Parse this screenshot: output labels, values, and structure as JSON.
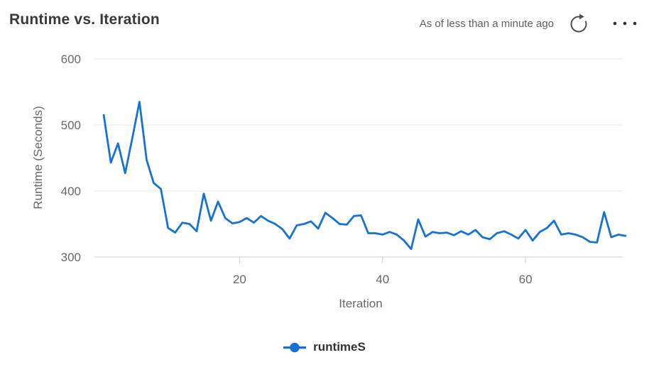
{
  "header": {
    "title": "Runtime vs. Iteration",
    "as_of": "As of less than a minute ago"
  },
  "icons": {
    "refresh": "refresh-icon",
    "more": "ellipsis-icon",
    "legend_marker": "line-dot-marker"
  },
  "chart_data": {
    "type": "line",
    "title": "Runtime vs. Iteration",
    "xlabel": "Iteration",
    "ylabel": "Runtime (Seconds)",
    "x_tick_values": [
      20,
      40,
      60
    ],
    "y_tick_values": [
      300,
      400,
      500,
      600
    ],
    "xlim": [
      0,
      74
    ],
    "ylim": [
      300,
      600
    ],
    "grid": "horizontal-only",
    "legend_position": "bottom-center",
    "series": [
      {
        "name": "runtimeS",
        "color": "#1673d4",
        "x_start": 1,
        "x_step": 1,
        "values": [
          515,
          443,
          472,
          427,
          480,
          535,
          447,
          412,
          403,
          344,
          337,
          352,
          350,
          339,
          396,
          355,
          384,
          359,
          351,
          353,
          359,
          352,
          362,
          355,
          350,
          342,
          328,
          348,
          350,
          354,
          343,
          367,
          359,
          350,
          349,
          362,
          363,
          336,
          336,
          334,
          338,
          334,
          325,
          312,
          357,
          331,
          338,
          336,
          337,
          333,
          339,
          334,
          341,
          330,
          327,
          336,
          339,
          334,
          328,
          341,
          325,
          338,
          344,
          355,
          334,
          336,
          334,
          330,
          323,
          322,
          368,
          330,
          334,
          332
        ]
      }
    ]
  }
}
